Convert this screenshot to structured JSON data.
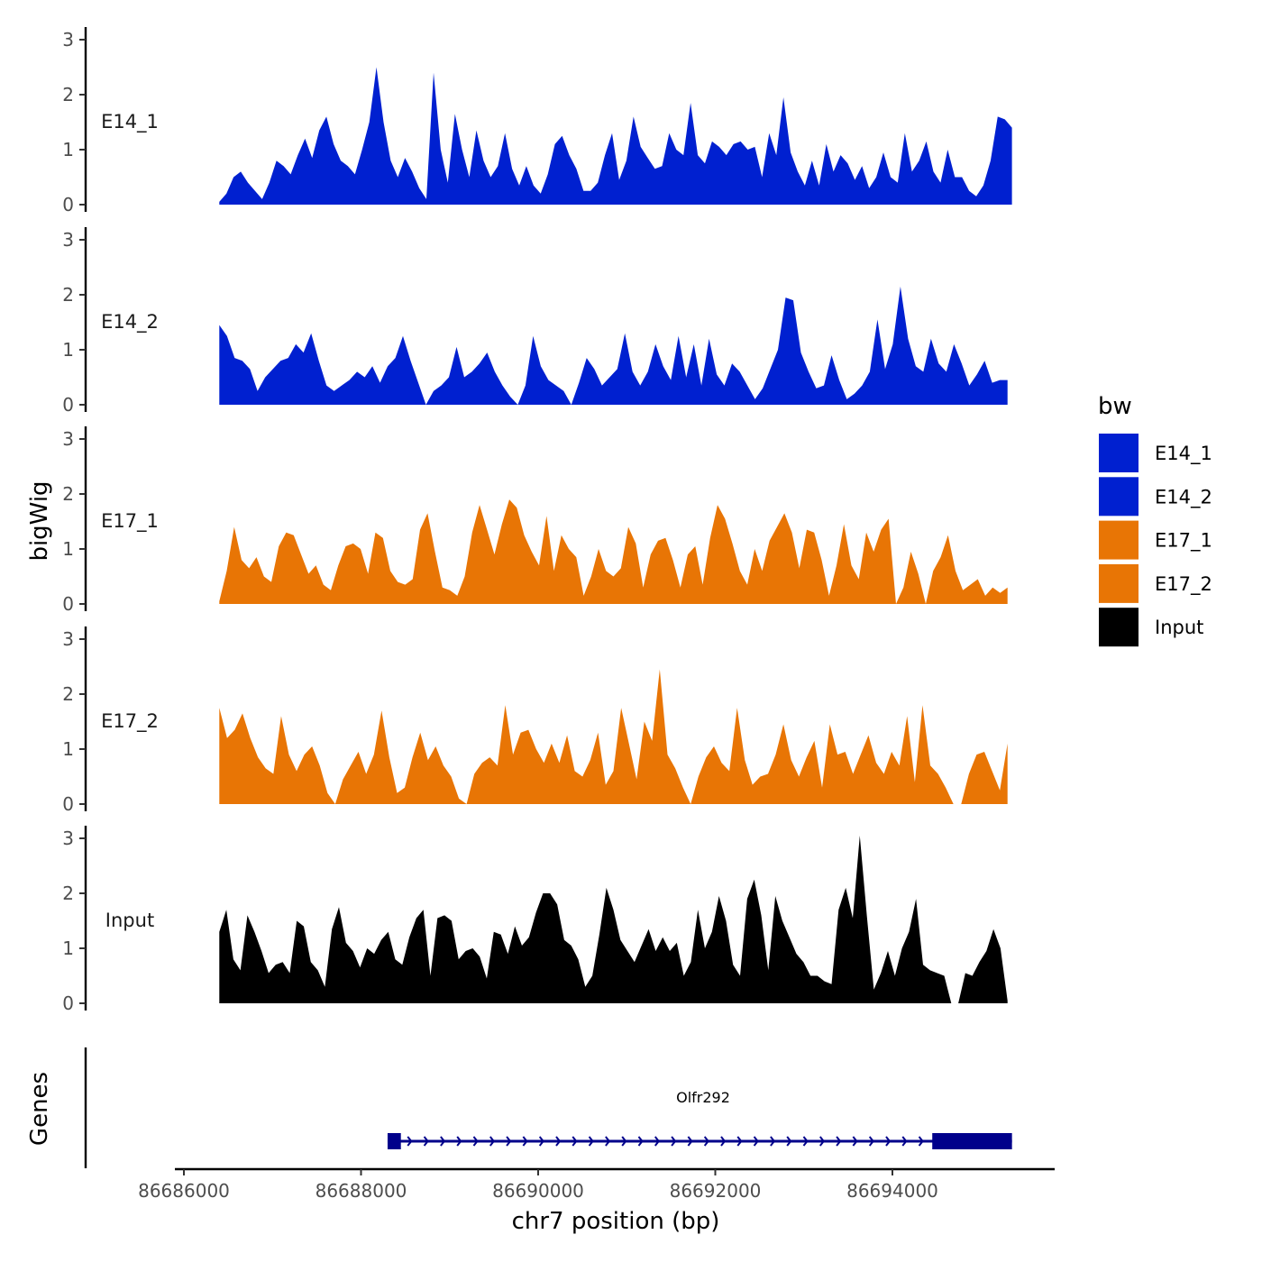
{
  "chart_data": {
    "type": "area",
    "ylabel": "bigWig",
    "xlabel": "chr7 position (bp)",
    "genes_label": "Genes",
    "x_range": [
      86686000,
      86695800
    ],
    "x_ticks": [
      86686000,
      86688000,
      86690000,
      86692000,
      86694000
    ],
    "x_tick_labels": [
      "86686000",
      "86688000",
      "86690000",
      "86692000",
      "86694000"
    ],
    "y_range": [
      0,
      3.2
    ],
    "y_ticks": [
      0,
      1,
      2,
      3
    ],
    "y_tick_labels": [
      "0",
      "1",
      "2",
      "3"
    ],
    "legend": {
      "title": "bw",
      "entries": [
        {
          "label": "E14_1",
          "color": "#0020D0"
        },
        {
          "label": "E14_2",
          "color": "#0020D0"
        },
        {
          "label": "E17_1",
          "color": "#E87505"
        },
        {
          "label": "E17_2",
          "color": "#E87505"
        },
        {
          "label": "Input",
          "color": "#000000"
        }
      ]
    },
    "series": [
      {
        "name": "E14_1",
        "color": "#0020D0",
        "x_start": 86686400,
        "x_end": 86695350,
        "values": [
          0.05,
          0.2,
          0.5,
          0.6,
          0.4,
          0.25,
          0.1,
          0.4,
          0.8,
          0.7,
          0.55,
          0.9,
          1.2,
          0.85,
          1.35,
          1.6,
          1.1,
          0.8,
          0.7,
          0.55,
          1.0,
          1.5,
          2.5,
          1.5,
          0.8,
          0.5,
          0.85,
          0.6,
          0.3,
          0.1,
          2.4,
          1.0,
          0.4,
          1.65,
          1.0,
          0.5,
          1.35,
          0.8,
          0.5,
          0.7,
          1.3,
          0.65,
          0.35,
          0.7,
          0.35,
          0.2,
          0.55,
          1.1,
          1.25,
          0.9,
          0.65,
          0.25,
          0.25,
          0.4,
          0.9,
          1.3,
          0.45,
          0.8,
          1.6,
          1.05,
          0.85,
          0.65,
          0.7,
          1.3,
          1.0,
          0.9,
          1.85,
          0.9,
          0.75,
          1.15,
          1.05,
          0.9,
          1.1,
          1.15,
          1.0,
          1.05,
          0.5,
          1.3,
          0.9,
          1.95,
          0.95,
          0.6,
          0.35,
          0.8,
          0.35,
          1.1,
          0.6,
          0.9,
          0.75,
          0.45,
          0.7,
          0.3,
          0.5,
          0.95,
          0.5,
          0.4,
          1.3,
          0.6,
          0.8,
          1.15,
          0.6,
          0.4,
          1.0,
          0.5,
          0.5,
          0.25,
          0.15,
          0.35,
          0.8,
          1.6,
          1.55,
          1.4
        ]
      },
      {
        "name": "E14_2",
        "color": "#0020D0",
        "x_start": 86686400,
        "x_end": 86695300,
        "values": [
          1.45,
          1.25,
          0.85,
          0.8,
          0.65,
          0.25,
          0.5,
          0.65,
          0.8,
          0.85,
          1.1,
          0.95,
          1.3,
          0.8,
          0.35,
          0.25,
          0.35,
          0.45,
          0.6,
          0.5,
          0.7,
          0.4,
          0.7,
          0.85,
          1.25,
          0.8,
          0.4,
          0.0,
          0.25,
          0.35,
          0.5,
          1.05,
          0.5,
          0.6,
          0.75,
          0.95,
          0.6,
          0.35,
          0.15,
          0.0,
          0.35,
          1.25,
          0.7,
          0.45,
          0.35,
          0.25,
          0.0,
          0.4,
          0.85,
          0.65,
          0.35,
          0.5,
          0.65,
          1.3,
          0.6,
          0.35,
          0.6,
          1.1,
          0.7,
          0.45,
          1.25,
          0.5,
          1.1,
          0.35,
          1.2,
          0.55,
          0.35,
          0.75,
          0.6,
          0.35,
          0.1,
          0.3,
          0.65,
          1.0,
          1.95,
          1.9,
          0.95,
          0.6,
          0.3,
          0.35,
          0.9,
          0.45,
          0.1,
          0.2,
          0.35,
          0.6,
          1.55,
          0.65,
          1.1,
          2.15,
          1.2,
          0.7,
          0.6,
          1.2,
          0.75,
          0.6,
          1.1,
          0.75,
          0.35,
          0.55,
          0.8,
          0.4,
          0.45,
          0.45
        ]
      },
      {
        "name": "E17_1",
        "color": "#E87505",
        "x_start": 86686400,
        "x_end": 86695300,
        "values": [
          0.05,
          0.6,
          1.4,
          0.8,
          0.65,
          0.85,
          0.5,
          0.4,
          1.05,
          1.3,
          1.25,
          0.9,
          0.55,
          0.7,
          0.35,
          0.25,
          0.7,
          1.05,
          1.1,
          1.0,
          0.55,
          1.3,
          1.2,
          0.6,
          0.4,
          0.35,
          0.45,
          1.35,
          1.65,
          0.95,
          0.3,
          0.25,
          0.15,
          0.5,
          1.3,
          1.8,
          1.35,
          0.9,
          1.45,
          1.9,
          1.75,
          1.25,
          0.95,
          0.7,
          1.6,
          0.6,
          1.25,
          1.0,
          0.85,
          0.15,
          0.5,
          1.0,
          0.6,
          0.5,
          0.65,
          1.4,
          1.1,
          0.3,
          0.9,
          1.15,
          1.2,
          0.8,
          0.3,
          0.9,
          1.05,
          0.35,
          1.2,
          1.8,
          1.55,
          1.1,
          0.6,
          0.35,
          1.0,
          0.6,
          1.15,
          1.4,
          1.65,
          1.3,
          0.65,
          1.35,
          1.3,
          0.8,
          0.15,
          0.7,
          1.45,
          0.7,
          0.45,
          1.3,
          0.95,
          1.35,
          1.55,
          0.0,
          0.3,
          0.95,
          0.55,
          0.0,
          0.6,
          0.85,
          1.25,
          0.6,
          0.25,
          0.35,
          0.45,
          0.15,
          0.3,
          0.2,
          0.3
        ]
      },
      {
        "name": "E17_2",
        "color": "#E87505",
        "x_start": 86686400,
        "x_end": 86695300,
        "values": [
          1.75,
          1.2,
          1.35,
          1.65,
          1.2,
          0.85,
          0.65,
          0.55,
          1.6,
          0.9,
          0.6,
          0.9,
          1.05,
          0.7,
          0.2,
          0.0,
          0.45,
          0.7,
          0.95,
          0.55,
          0.9,
          1.7,
          0.85,
          0.2,
          0.3,
          0.85,
          1.3,
          0.8,
          1.05,
          0.7,
          0.5,
          0.1,
          0.0,
          0.55,
          0.75,
          0.85,
          0.7,
          1.8,
          0.9,
          1.3,
          1.35,
          1.0,
          0.75,
          1.1,
          0.75,
          1.25,
          0.6,
          0.5,
          0.8,
          1.3,
          0.35,
          0.6,
          1.75,
          1.1,
          0.45,
          1.5,
          1.15,
          2.45,
          0.9,
          0.65,
          0.3,
          0.0,
          0.5,
          0.85,
          1.05,
          0.75,
          0.6,
          1.75,
          0.8,
          0.35,
          0.5,
          0.55,
          0.9,
          1.45,
          0.8,
          0.5,
          0.85,
          1.15,
          0.3,
          1.45,
          0.9,
          0.95,
          0.55,
          0.9,
          1.25,
          0.75,
          0.55,
          0.95,
          0.7,
          1.6,
          0.4,
          1.8,
          0.7,
          0.55,
          0.3,
          0.0,
          0.0,
          0.55,
          0.9,
          0.95,
          0.6,
          0.25,
          1.1
        ]
      },
      {
        "name": "Input",
        "color": "#000000",
        "x_start": 86686400,
        "x_end": 86695300,
        "values": [
          1.3,
          1.7,
          0.8,
          0.6,
          1.6,
          1.3,
          0.95,
          0.55,
          0.7,
          0.75,
          0.55,
          1.5,
          1.4,
          0.75,
          0.6,
          0.3,
          1.35,
          1.75,
          1.1,
          0.95,
          0.65,
          1.0,
          0.9,
          1.15,
          1.3,
          0.8,
          0.7,
          1.2,
          1.55,
          1.7,
          0.5,
          1.55,
          1.6,
          1.5,
          0.8,
          0.95,
          1.0,
          0.85,
          0.45,
          1.3,
          1.25,
          0.9,
          1.4,
          1.05,
          1.2,
          1.65,
          2.0,
          2.0,
          1.8,
          1.15,
          1.05,
          0.8,
          0.3,
          0.5,
          1.25,
          2.1,
          1.7,
          1.15,
          0.95,
          0.75,
          1.05,
          1.35,
          0.95,
          1.2,
          0.95,
          1.1,
          0.5,
          0.75,
          1.7,
          1.0,
          1.3,
          1.95,
          1.5,
          0.7,
          0.5,
          1.9,
          2.25,
          1.6,
          0.6,
          1.95,
          1.5,
          1.2,
          0.9,
          0.75,
          0.5,
          0.5,
          0.4,
          0.35,
          1.7,
          2.1,
          1.55,
          3.05,
          1.6,
          0.25,
          0.55,
          0.95,
          0.5,
          1.0,
          1.3,
          1.9,
          0.7,
          0.6,
          0.55,
          0.5,
          0.0,
          0.0,
          0.55,
          0.5,
          0.75,
          0.95,
          1.35,
          1.0,
          0.05
        ]
      }
    ],
    "gene": {
      "name": "Olfr292",
      "strand": "+",
      "start": 86688300,
      "end": 86695350,
      "exons": [
        {
          "start": 86688300,
          "end": 86688450
        },
        {
          "start": 86694450,
          "end": 86695350
        }
      ],
      "color": "#00008B"
    }
  }
}
